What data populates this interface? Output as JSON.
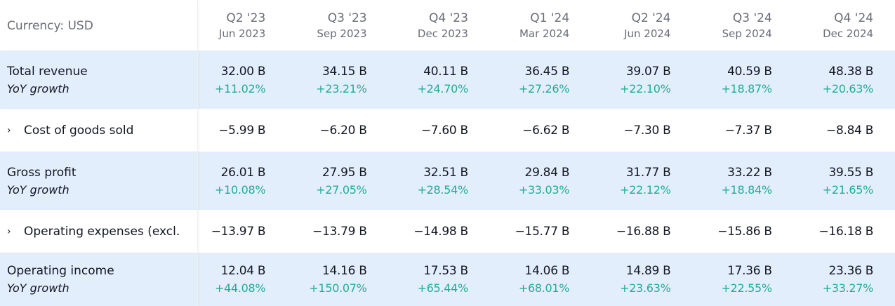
{
  "currency_label": "Currency: USD",
  "periods": [
    {
      "quarter": "Q2 '23",
      "date": "Jun 2023"
    },
    {
      "quarter": "Q3 '23",
      "date": "Sep 2023"
    },
    {
      "quarter": "Q4 '23",
      "date": "Dec 2023"
    },
    {
      "quarter": "Q1 '24",
      "date": "Mar 2024"
    },
    {
      "quarter": "Q2 '24",
      "date": "Jun 2024"
    },
    {
      "quarter": "Q3 '24",
      "date": "Sep 2024"
    },
    {
      "quarter": "Q4 '24",
      "date": "Dec 2024"
    }
  ],
  "rows": [
    {
      "label": "Total revenue",
      "sub_label": "YoY growth",
      "values": [
        "32.00 B",
        "34.15 B",
        "40.11 B",
        "36.45 B",
        "39.07 B",
        "40.59 B",
        "48.38 B"
      ],
      "growth": [
        "+11.02%",
        "+23.21%",
        "+24.70%",
        "+27.26%",
        "+22.10%",
        "+18.87%",
        "+20.63%"
      ]
    },
    {
      "label": "Cost of goods sold",
      "expandable": true,
      "values": [
        "−5.99 B",
        "−6.20 B",
        "−7.60 B",
        "−6.62 B",
        "−7.30 B",
        "−7.37 B",
        "−8.84 B"
      ]
    },
    {
      "label": "Gross profit",
      "sub_label": "YoY growth",
      "values": [
        "26.01 B",
        "27.95 B",
        "32.51 B",
        "29.84 B",
        "31.77 B",
        "33.22 B",
        "39.55 B"
      ],
      "growth": [
        "+10.08%",
        "+27.05%",
        "+28.54%",
        "+33.03%",
        "+22.12%",
        "+18.84%",
        "+21.65%"
      ]
    },
    {
      "label": "Operating expenses (excl.",
      "expandable": true,
      "values": [
        "−13.97 B",
        "−13.79 B",
        "−14.98 B",
        "−15.77 B",
        "−16.88 B",
        "−15.86 B",
        "−16.18 B"
      ]
    },
    {
      "label": "Operating income",
      "sub_label": "YoY growth",
      "values": [
        "12.04 B",
        "14.16 B",
        "17.53 B",
        "14.06 B",
        "14.89 B",
        "17.36 B",
        "23.36 B"
      ],
      "growth": [
        "+44.08%",
        "+150.07%",
        "+65.44%",
        "+68.01%",
        "+23.63%",
        "+22.55%",
        "+33.27%"
      ]
    }
  ],
  "colors": {
    "highlight_row": "#e3eefc",
    "positive": "#22ab94",
    "muted": "#6a6d78"
  }
}
